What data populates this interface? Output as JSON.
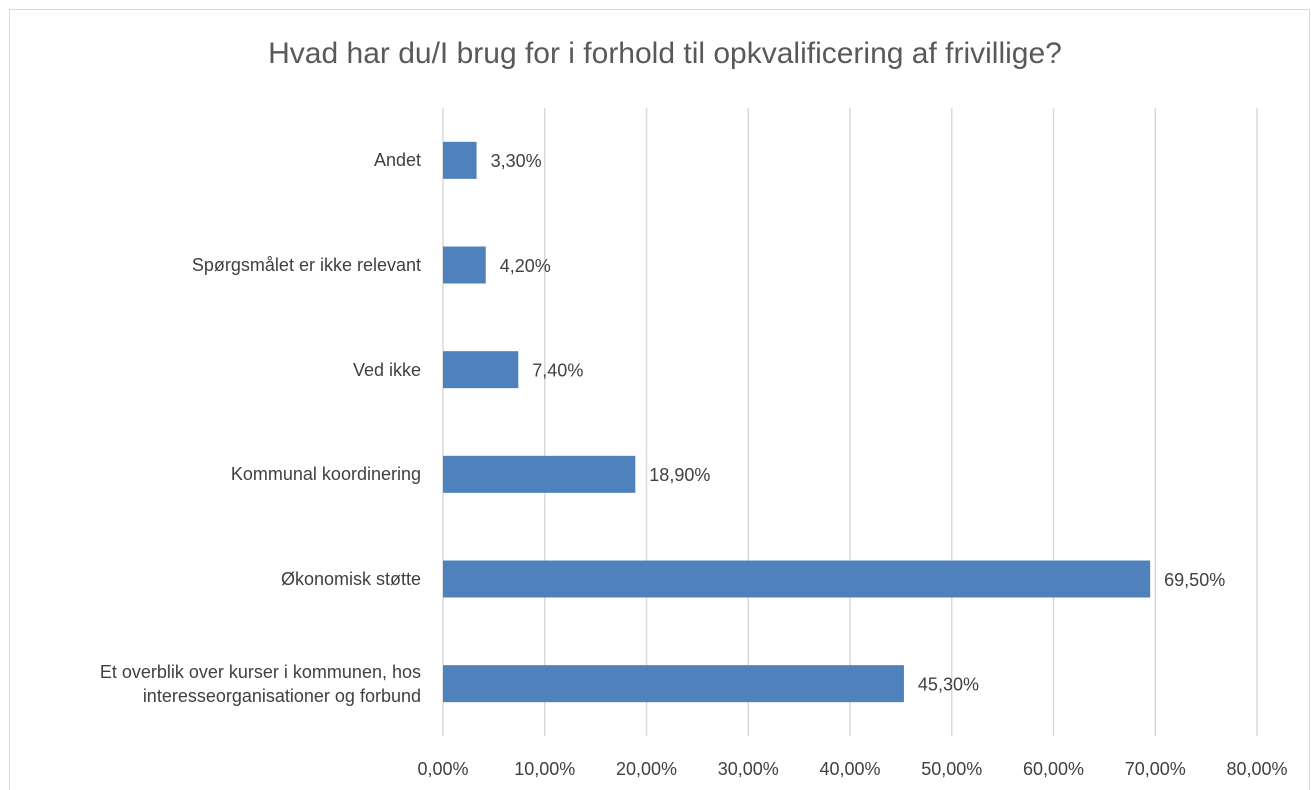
{
  "chart_data": {
    "type": "bar",
    "orientation": "horizontal",
    "title": "Hvad har du/I brug for i forhold til opkvalificering af frivillige?",
    "categories": [
      "Andet",
      "Spørgsmålet er ikke relevant",
      "Ved ikke",
      "Kommunal koordinering",
      "Økonomisk støtte",
      "Et overblik over kurser i kommunen, hos interesseorganisationer og forbund"
    ],
    "values": [
      3.3,
      4.2,
      7.4,
      18.9,
      69.5,
      45.3
    ],
    "value_labels": [
      "3,30%",
      "4,20%",
      "7,40%",
      "18,90%",
      "69,50%",
      "45,30%"
    ],
    "color": "#4f81bd",
    "xlim": [
      0,
      80
    ],
    "xticks": [
      {
        "value": 0,
        "label": "0,00%"
      },
      {
        "value": 10,
        "label": "10,00%"
      },
      {
        "value": 20,
        "label": "20,00%"
      },
      {
        "value": 30,
        "label": "30,00%"
      },
      {
        "value": 40,
        "label": "40,00%"
      },
      {
        "value": 50,
        "label": "50,00%"
      },
      {
        "value": 60,
        "label": "60,00%"
      },
      {
        "value": 70,
        "label": "70,00%"
      },
      {
        "value": 80,
        "label": "80,00%"
      }
    ],
    "grid": true
  }
}
